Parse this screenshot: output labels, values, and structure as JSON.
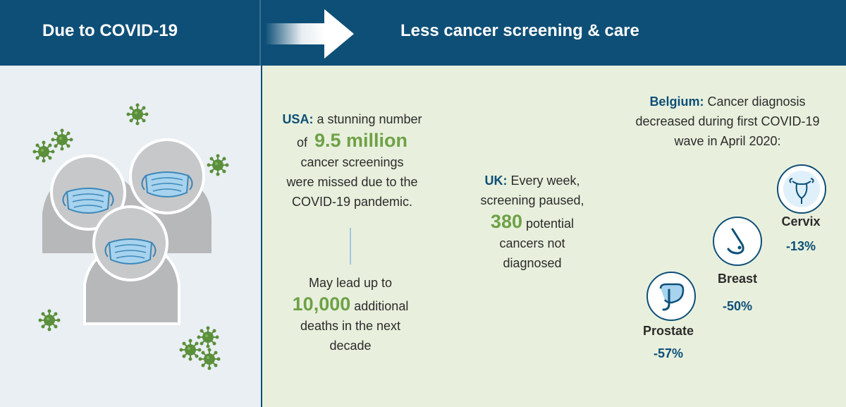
{
  "header": {
    "left_title": "Due to COVID-19",
    "right_title": "Less cancer screening & care"
  },
  "usa": {
    "label": "USA:",
    "line1": "a stunning number",
    "line2_prefix": "of",
    "highlight": "9.5 million",
    "line3": "cancer screenings",
    "line4": "were missed due to the",
    "line5": "COVID-19 pandemic."
  },
  "deaths": {
    "line1": "May lead up to",
    "highlight": "10,000",
    "line2_suffix": "additional",
    "line3": "deaths in the next",
    "line4": "decade"
  },
  "uk": {
    "label": "UK:",
    "line1": "Every week,",
    "line2": "screening paused,",
    "highlight": "380",
    "line3_suffix": "potential",
    "line4": "cancers not",
    "line5": "diagnosed"
  },
  "belgium": {
    "label": "Belgium:",
    "line1": "Cancer diagnosis",
    "line2": "decreased during first COVID-19",
    "line3": "wave in April 2020:"
  },
  "organs": [
    {
      "name": "Cervix",
      "pct": "-13%",
      "icon": "uterus-icon"
    },
    {
      "name": "Breast",
      "pct": "-50%",
      "icon": "breast-icon"
    },
    {
      "name": "Prostate",
      "pct": "-57%",
      "icon": "prostate-icon"
    }
  ],
  "colors": {
    "header": "#0e4f77",
    "accent_green": "#6fa147",
    "left_bg": "#e9eff3",
    "right_bg": "#e8f0dd"
  }
}
